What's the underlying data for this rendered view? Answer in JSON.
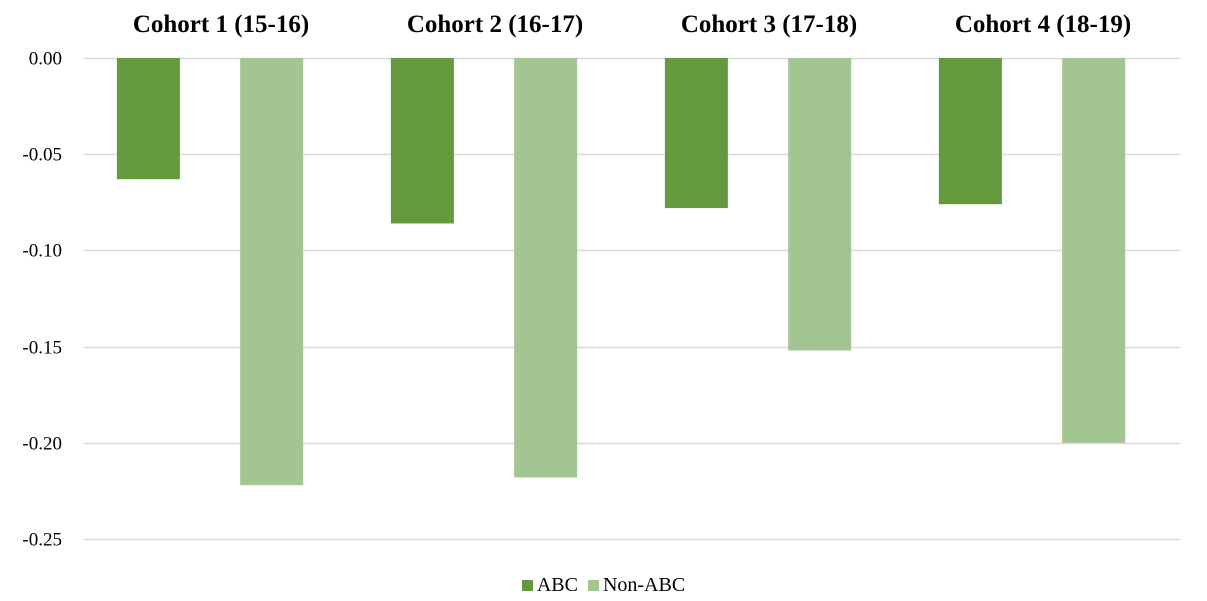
{
  "chart_data": {
    "type": "bar",
    "categories": [
      "Cohort 1 (15-16)",
      "Cohort 2 (16-17)",
      "Cohort 3 (17-18)",
      "Cohort 4 (18-19)"
    ],
    "series": [
      {
        "name": "ABC",
        "values": [
          -0.063,
          -0.086,
          -0.078,
          -0.076
        ],
        "color": "#629A3D"
      },
      {
        "name": "Non-ABC",
        "values": [
          -0.222,
          -0.218,
          -0.152,
          -0.2
        ],
        "color": "#A3C591"
      }
    ],
    "y_ticks": [
      "0.00",
      "-0.05",
      "-0.10",
      "-0.15",
      "-0.20",
      "-0.25"
    ],
    "y_tick_values": [
      0,
      -0.05,
      -0.1,
      -0.15,
      -0.2,
      -0.25
    ],
    "ylim": [
      -0.25,
      0
    ],
    "grid": true,
    "category_labels_position": "top",
    "legend_position": "bottom-center",
    "title": "",
    "xlabel": "",
    "ylabel": ""
  },
  "colors": {
    "gridline": "#D9D9D9"
  }
}
